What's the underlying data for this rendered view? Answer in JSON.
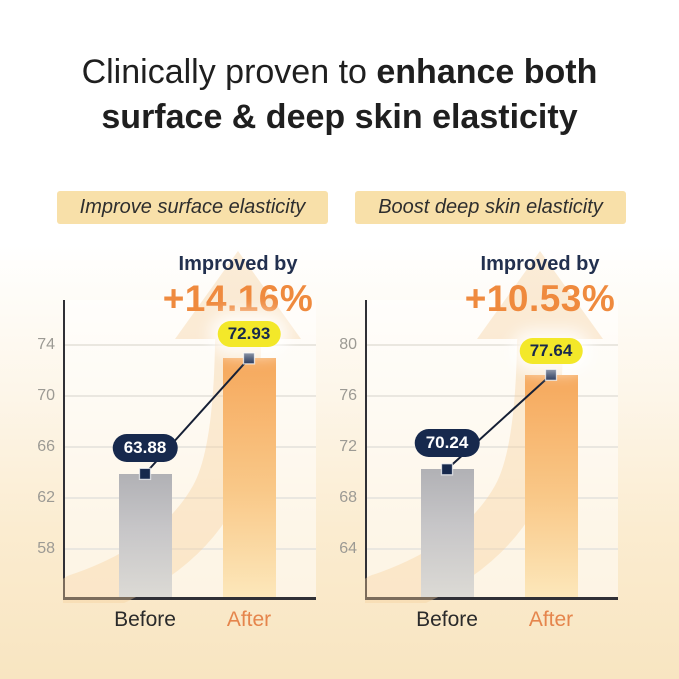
{
  "header": {
    "title_regular": "Clinically proven to ",
    "title_bold_line1": "enhance both",
    "title_bold_line2": "surface & deep skin elasticity"
  },
  "colors": {
    "accent_orange": "#EF8A3E",
    "chip_background": "#F8E0A9",
    "navy": "#17294D",
    "yellow_pill": "#F3E829",
    "bar_gray_top": "#B1B1B5",
    "bar_orange_top": "#F6A85C",
    "background_bottom": "#F8E5C1",
    "after_label_color": "#E5854C",
    "tick_label_color": "#9C9A94"
  },
  "chart_data": [
    {
      "type": "bar",
      "panel_label": "Improve surface elasticity",
      "improved_by_label": "Improved by",
      "improvement": "+14.16%",
      "categories": [
        "Before",
        "After"
      ],
      "values": [
        63.88,
        72.93
      ],
      "value_labels": [
        "63.88",
        "72.93"
      ],
      "yticks": [
        58,
        62,
        66,
        70,
        74
      ],
      "ylim": [
        54,
        77.5
      ],
      "grid": true,
      "legend": "none"
    },
    {
      "type": "bar",
      "panel_label": "Boost deep skin elasticity",
      "improved_by_label": "Improved by",
      "improvement": "+10.53%",
      "categories": [
        "Before",
        "After"
      ],
      "values": [
        70.24,
        77.64
      ],
      "value_labels": [
        "70.24",
        "77.64"
      ],
      "yticks": [
        64,
        68,
        72,
        76,
        80
      ],
      "ylim": [
        60,
        83.5
      ],
      "grid": true,
      "legend": "none"
    }
  ]
}
